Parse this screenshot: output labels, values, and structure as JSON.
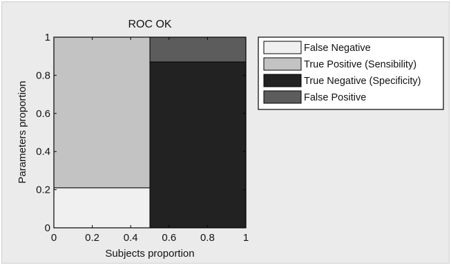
{
  "chart_data": {
    "type": "bar",
    "stacked": true,
    "title": "ROC OK",
    "xlabel": "Subjects proportion",
    "ylabel": "Parameters proportion",
    "xlim": [
      0,
      1
    ],
    "ylim": [
      0,
      1
    ],
    "xticks": [
      "0",
      "0.2",
      "0.4",
      "0.6",
      "0.8",
      "1"
    ],
    "yticks": [
      "0",
      "0.2",
      "0.4",
      "0.6",
      "0.8",
      "1"
    ],
    "grid": false,
    "legend_position": "outside-top-right",
    "bars": [
      {
        "x0": 0,
        "x1": 0.5,
        "segments": [
          {
            "series": "False Negative",
            "from": 0,
            "to": 0.21
          },
          {
            "series": "True Positive (Sensibility)",
            "from": 0.21,
            "to": 1.0
          }
        ]
      },
      {
        "x0": 0.5,
        "x1": 1.0,
        "segments": [
          {
            "series": "True Negative (Specificity)",
            "from": 0,
            "to": 0.87
          },
          {
            "series": "False Positive",
            "from": 0.87,
            "to": 1.0
          }
        ]
      }
    ],
    "series": [
      {
        "name": "False Negative",
        "color": "#f0f0f0"
      },
      {
        "name": "True Positive (Sensibility)",
        "color": "#c3c3c3"
      },
      {
        "name": "True Negative (Specificity)",
        "color": "#222222"
      },
      {
        "name": "False Positive",
        "color": "#5c5c5c"
      }
    ]
  }
}
